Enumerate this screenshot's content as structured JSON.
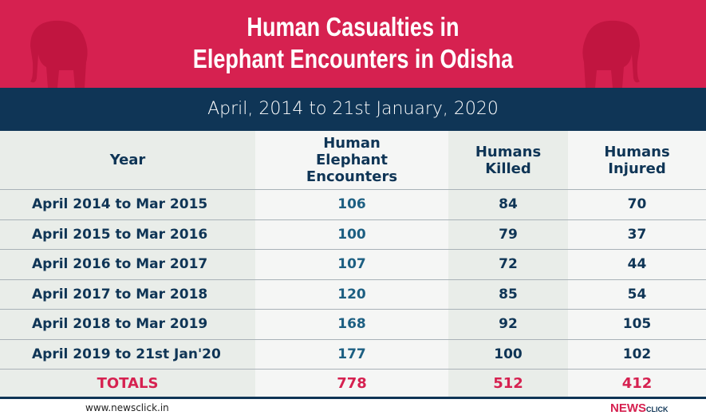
{
  "header": {
    "title_line1": "Human Casualties in",
    "title_line2": "Elephant Encounters in Odisha",
    "subtitle": "April, 2014 to 21st January, 2020"
  },
  "colors": {
    "header_bg": "#d62150",
    "band_bg": "#0f3556",
    "text_navy": "#0f3556",
    "encounter_text": "#1d5f82",
    "totals_text": "#d62150"
  },
  "table": {
    "columns": [
      "Year",
      "Human Elephant Encounters",
      "Humans Killed",
      "Humans Injured"
    ],
    "rows": [
      [
        "April 2014 to Mar 2015",
        "106",
        "84",
        "70"
      ],
      [
        "April 2015 to Mar 2016",
        "100",
        "79",
        "37"
      ],
      [
        "April 2016 to Mar 2017",
        "107",
        "72",
        "44"
      ],
      [
        "April 2017 to  Mar 2018",
        "120",
        "85",
        "54"
      ],
      [
        "April 2018 to Mar 2019",
        "168",
        "92",
        "105"
      ],
      [
        "April 2019 to 21st Jan'20",
        "177",
        "100",
        "102"
      ]
    ],
    "totals": [
      "TOTALS",
      "778",
      "512",
      "412"
    ]
  },
  "footer": {
    "url": "www.newsclick.in",
    "logo_main": "NEWS",
    "logo_sub": "CLICK"
  }
}
